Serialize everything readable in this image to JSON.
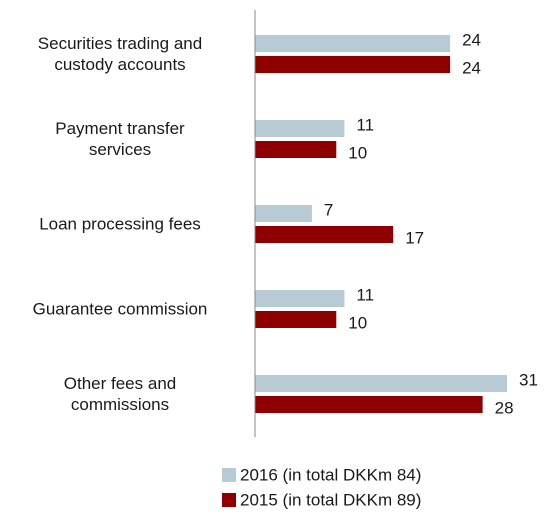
{
  "chart_data": {
    "type": "bar",
    "orientation": "horizontal",
    "categories": [
      "Securities trading and\ncustody accounts",
      "Payment transfer\nservices",
      "Loan processing fees",
      "Guarantee commission",
      "Other fees and\ncommissions"
    ],
    "series": [
      {
        "name": "2016 (in total DKKm 84)",
        "color": "#b8cad4",
        "values": [
          24,
          11,
          7,
          11,
          31
        ]
      },
      {
        "name": "2015 (in total DKKm 89)",
        "color": "#8e0000",
        "values": [
          24,
          10,
          17,
          10,
          28
        ]
      }
    ],
    "legend": "bottom"
  }
}
